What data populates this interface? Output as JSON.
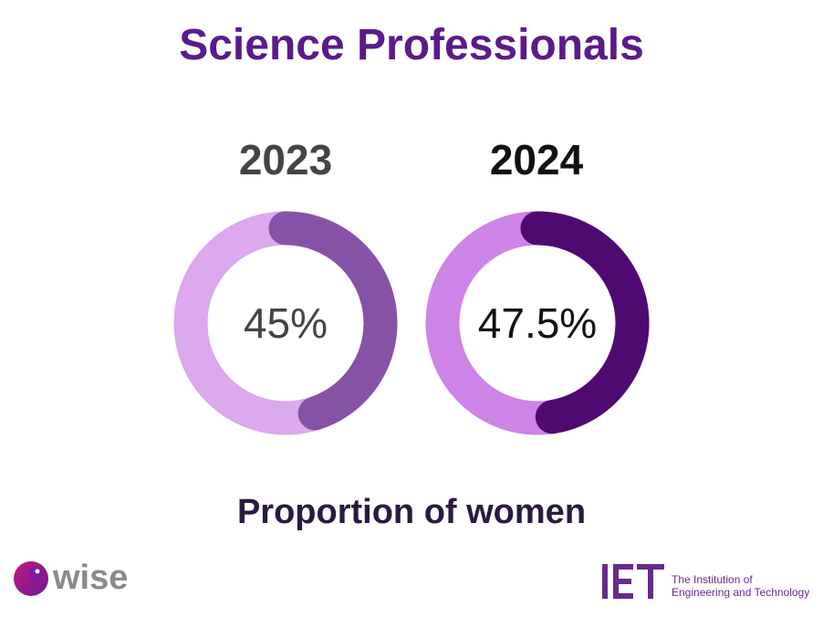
{
  "title": "Science Professionals",
  "subtitle": "Proportion of women",
  "colors": {
    "title": "#5b1a8a",
    "ring_2023_bg": "#dca8ee",
    "ring_2023_fg": "#8652a6",
    "ring_2024_bg": "#cd84e6",
    "ring_2024_fg": "#4f0a72"
  },
  "chart_data": [
    {
      "type": "pie",
      "style": "donut",
      "title": "2023",
      "label": "45%",
      "value": 45,
      "max": 100
    },
    {
      "type": "pie",
      "style": "donut",
      "title": "2024",
      "label": "47.5%",
      "value": 47.5,
      "max": 100
    }
  ],
  "logos": {
    "wise": {
      "name": "wise",
      "icon": "wise-logo-icon"
    },
    "iet": {
      "name": "IET",
      "line1": "The Institution of",
      "line2": "Engineering and Technology",
      "icon": "iet-logo-icon"
    }
  }
}
